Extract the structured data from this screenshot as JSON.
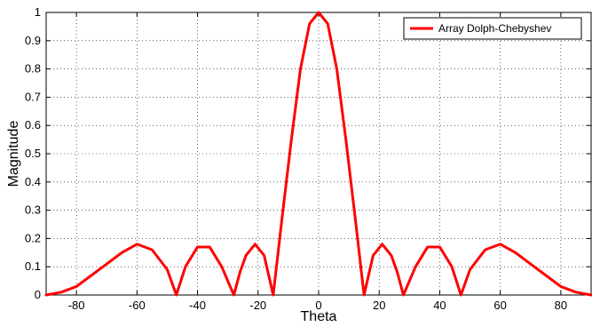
{
  "chart_data": {
    "type": "line",
    "xlabel": "Theta",
    "ylabel": "Magnitude",
    "xlim": [
      -90,
      90
    ],
    "ylim": [
      0,
      1
    ],
    "xticks": [
      -80,
      -60,
      -40,
      -20,
      0,
      20,
      40,
      60,
      80
    ],
    "yticks": [
      0,
      0.1,
      0.2,
      0.3,
      0.4,
      0.5,
      0.6,
      0.7,
      0.8,
      0.9,
      1
    ],
    "ytick_labels": [
      "0",
      "0.1",
      "0.2",
      "0.3",
      "0.4",
      "0.5",
      "0.6",
      "0.7",
      "0.8",
      "0.9",
      "1"
    ],
    "grid": true,
    "legend_position": "top-right",
    "series": [
      {
        "name": "Array Dolph-Chebyshev",
        "color": "#ff0000",
        "x": [
          -90,
          -85,
          -80,
          -75,
          -70,
          -65,
          -60,
          -55,
          -50,
          -47,
          -44,
          -40,
          -36,
          -32,
          -28,
          -26,
          -24,
          -21,
          -18,
          -15,
          -12,
          -9,
          -6,
          -3,
          0,
          3,
          6,
          9,
          12,
          15,
          18,
          21,
          24,
          26,
          28,
          32,
          36,
          40,
          44,
          47,
          50,
          55,
          60,
          65,
          70,
          75,
          80,
          85,
          90
        ],
        "y": [
          0.0,
          0.01,
          0.03,
          0.07,
          0.11,
          0.15,
          0.18,
          0.16,
          0.09,
          0.0,
          0.1,
          0.17,
          0.17,
          0.1,
          0.0,
          0.08,
          0.14,
          0.18,
          0.14,
          0.0,
          0.28,
          0.55,
          0.8,
          0.96,
          1.0,
          0.96,
          0.8,
          0.55,
          0.28,
          0.0,
          0.14,
          0.18,
          0.14,
          0.08,
          0.0,
          0.1,
          0.17,
          0.17,
          0.1,
          0.0,
          0.09,
          0.16,
          0.18,
          0.15,
          0.11,
          0.07,
          0.03,
          0.01,
          0.0
        ]
      }
    ]
  }
}
